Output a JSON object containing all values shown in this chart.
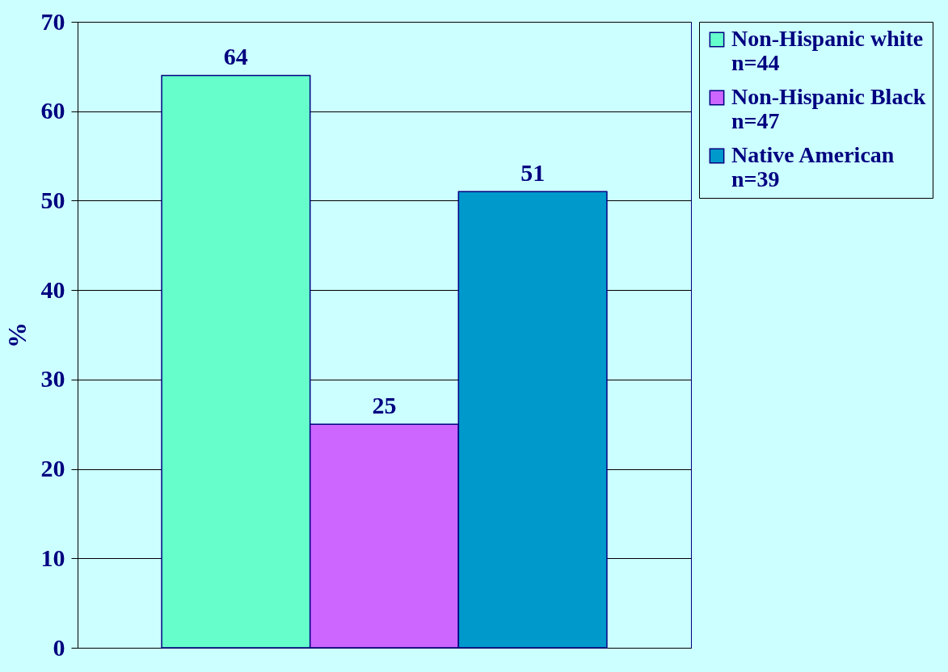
{
  "chart_data": {
    "type": "bar",
    "ylabel": "%",
    "categories": [
      null
    ],
    "series": [
      {
        "name": "Non-Hispanic white\nn=44",
        "color": "#66ffcc",
        "values": [
          64
        ]
      },
      {
        "name": "Non-Hispanic Black\nn=47",
        "color": "#cc66ff",
        "values": [
          25
        ]
      },
      {
        "name": "Native American\nn=39",
        "color": "#0099cc",
        "values": [
          51
        ]
      }
    ],
    "ylim": [
      0,
      70
    ],
    "yticks": [
      0,
      10,
      20,
      30,
      40,
      50,
      60,
      70
    ],
    "grid": "y",
    "legend": "right",
    "data_labels": true,
    "tick_labels": "y"
  }
}
